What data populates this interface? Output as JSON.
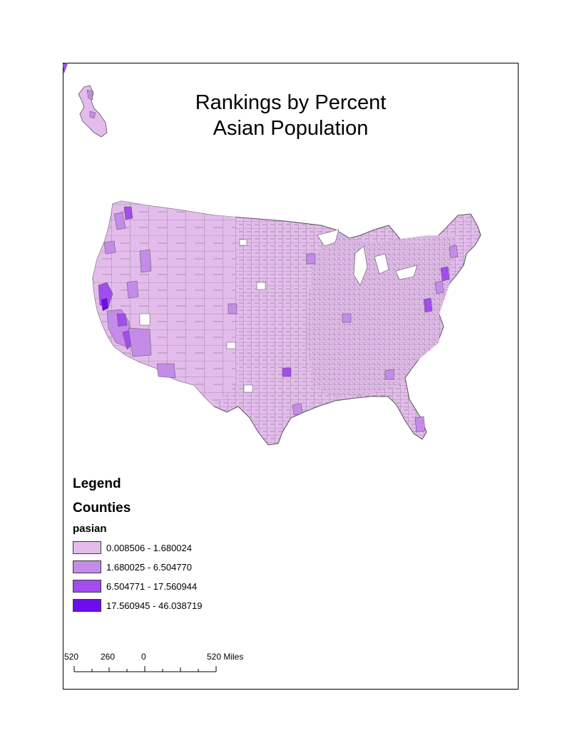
{
  "title": {
    "line1": "Rankings by Percent",
    "line2": "Asian Population"
  },
  "legend": {
    "heading": "Legend",
    "layer": "Counties",
    "field": "pasian",
    "classes": [
      {
        "label": "0.008506 - 1.680024",
        "color": "#e3bcec"
      },
      {
        "label": "1.680025 - 6.504770",
        "color": "#c48ce8"
      },
      {
        "label": "6.504771 - 17.560944",
        "color": "#a24ded"
      },
      {
        "label": "17.560945 - 46.038719",
        "color": "#6d0cef"
      }
    ]
  },
  "scale_bar": {
    "labels": [
      "520",
      "260",
      "0",
      "520 Miles"
    ]
  },
  "colors": {
    "county_border": "#6b6b6b",
    "frame": "#000000"
  }
}
